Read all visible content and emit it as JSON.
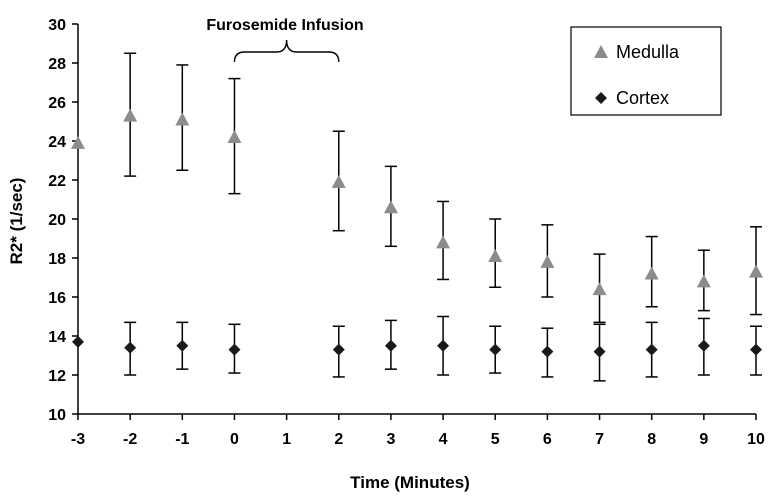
{
  "colors": {
    "medulla": "#8c8c8c",
    "cortex": "#1a1a1a",
    "axis": "#000000",
    "errorbar": "#000000"
  },
  "chart_data": {
    "type": "scatter",
    "title": "",
    "xlabel": "Time (Minutes)",
    "ylabel": "R2* (1/sec)",
    "x_categories": [
      "-3",
      "-2",
      "-1",
      "0",
      "1",
      "2",
      "3",
      "4",
      "5",
      "6",
      "7",
      "8",
      "9",
      "10"
    ],
    "ylim": [
      10,
      30
    ],
    "yticks": [
      10,
      12,
      14,
      16,
      18,
      20,
      22,
      24,
      26,
      28,
      30
    ],
    "grid": false,
    "legend_position": "top-right",
    "annotation": {
      "text": "Furosemide Infusion",
      "x_start": "0",
      "x_end": "2",
      "shape": "curly-brace"
    },
    "series": [
      {
        "name": "Medulla",
        "marker": "triangle",
        "points": [
          {
            "x": "-3",
            "y": 23.9,
            "err_low": null,
            "err_high": null
          },
          {
            "x": "-2",
            "y": 25.3,
            "err_low": 22.2,
            "err_high": 28.5
          },
          {
            "x": "-1",
            "y": 25.1,
            "err_low": 22.5,
            "err_high": 27.9
          },
          {
            "x": "0",
            "y": 24.2,
            "err_low": 21.3,
            "err_high": 27.2
          },
          {
            "x": "2",
            "y": 21.9,
            "err_low": 19.4,
            "err_high": 24.5
          },
          {
            "x": "3",
            "y": 20.6,
            "err_low": 18.6,
            "err_high": 22.7
          },
          {
            "x": "4",
            "y": 18.8,
            "err_low": 16.9,
            "err_high": 20.9
          },
          {
            "x": "5",
            "y": 18.1,
            "err_low": 16.5,
            "err_high": 20.0
          },
          {
            "x": "6",
            "y": 17.8,
            "err_low": 16.0,
            "err_high": 19.7
          },
          {
            "x": "7",
            "y": 16.4,
            "err_low": 14.7,
            "err_high": 18.2
          },
          {
            "x": "8",
            "y": 17.2,
            "err_low": 15.5,
            "err_high": 19.1
          },
          {
            "x": "9",
            "y": 16.8,
            "err_low": 15.3,
            "err_high": 18.4
          },
          {
            "x": "10",
            "y": 17.3,
            "err_low": 15.1,
            "err_high": 19.6
          }
        ]
      },
      {
        "name": "Cortex",
        "marker": "diamond",
        "points": [
          {
            "x": "-3",
            "y": 13.7,
            "err_low": null,
            "err_high": null
          },
          {
            "x": "-2",
            "y": 13.4,
            "err_low": 12.0,
            "err_high": 14.7
          },
          {
            "x": "-1",
            "y": 13.5,
            "err_low": 12.3,
            "err_high": 14.7
          },
          {
            "x": "0",
            "y": 13.3,
            "err_low": 12.1,
            "err_high": 14.6
          },
          {
            "x": "2",
            "y": 13.3,
            "err_low": 11.9,
            "err_high": 14.5
          },
          {
            "x": "3",
            "y": 13.5,
            "err_low": 12.3,
            "err_high": 14.8
          },
          {
            "x": "4",
            "y": 13.5,
            "err_low": 12.0,
            "err_high": 15.0
          },
          {
            "x": "5",
            "y": 13.3,
            "err_low": 12.1,
            "err_high": 14.5
          },
          {
            "x": "6",
            "y": 13.2,
            "err_low": 11.9,
            "err_high": 14.4
          },
          {
            "x": "7",
            "y": 13.2,
            "err_low": 11.7,
            "err_high": 14.6
          },
          {
            "x": "8",
            "y": 13.3,
            "err_low": 11.9,
            "err_high": 14.7
          },
          {
            "x": "9",
            "y": 13.5,
            "err_low": 12.0,
            "err_high": 14.9
          },
          {
            "x": "10",
            "y": 13.3,
            "err_low": 12.0,
            "err_high": 14.5
          }
        ]
      }
    ]
  }
}
